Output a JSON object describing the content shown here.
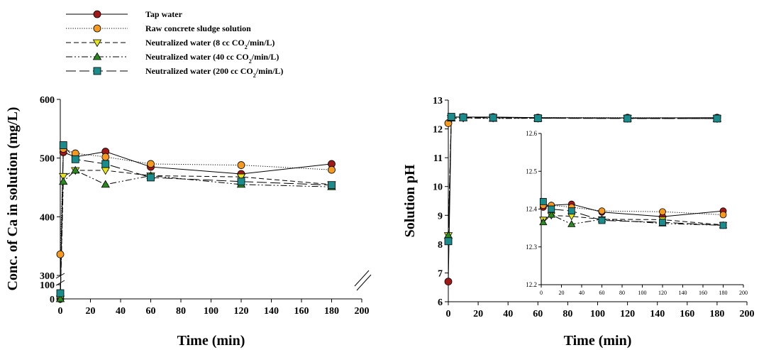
{
  "legend": {
    "entries": [
      {
        "label": "Tap water",
        "color": "#a01818",
        "marker": "circle",
        "dash": "solid"
      },
      {
        "label": "Raw concrete sludge solution",
        "color": "#f59a1e",
        "marker": "circle",
        "dash": "dotted"
      },
      {
        "label": "Neutralized water (8 cc CO",
        "sub": "2",
        "tail": "/min/L)",
        "color": "#e6e61a",
        "marker": "triangle-down",
        "dash": "dashed"
      },
      {
        "label": "Neutralized water (40 cc CO",
        "sub": "2",
        "tail": "/min/L)",
        "color": "#2a8a1e",
        "marker": "triangle-up",
        "dash": "dashdotdot"
      },
      {
        "label": "Neutralized water (200 cc CO",
        "sub": "2",
        "tail": "/min/L)",
        "color": "#1a8c8c",
        "marker": "square",
        "dash": "longdash"
      }
    ]
  },
  "chart_data": [
    {
      "type": "line",
      "xlabel": "Time (min)",
      "ylabel": "Conc. of Ca in solution (mg/L)",
      "xlim": [
        0,
        200
      ],
      "y_axis_break": {
        "lower_range": [
          0,
          100
        ],
        "upper_range": [
          300,
          600
        ]
      },
      "x_ticks": [
        "0",
        "20",
        "40",
        "60",
        "80",
        "100",
        "120",
        "140",
        "160",
        "180",
        "200"
      ],
      "y_ticks_upper": [
        "300",
        "400",
        "500",
        "600"
      ],
      "y_ticks_lower": [
        "0",
        "100"
      ],
      "series": [
        {
          "name": "Tap water",
          "x": [
            0,
            2,
            10,
            30,
            60,
            120,
            180
          ],
          "y": [
            0,
            510,
            502,
            511,
            485,
            473,
            490
          ]
        },
        {
          "name": "Raw concrete sludge solution",
          "x": [
            0,
            2,
            10,
            30,
            60,
            120,
            180
          ],
          "y": [
            336,
            516,
            508,
            502,
            490,
            488,
            480
          ]
        },
        {
          "name": "Neutralized water (8 cc CO2/min/L)",
          "x": [
            0,
            2,
            10,
            30,
            60,
            120,
            180
          ],
          "y": [
            0,
            469,
            479,
            479,
            470,
            468,
            455
          ]
        },
        {
          "name": "Neutralized water (40 cc CO2/min/L)",
          "x": [
            0,
            2,
            10,
            30,
            60,
            120,
            180
          ],
          "y": [
            0,
            460,
            479,
            455,
            470,
            455,
            451
          ]
        },
        {
          "name": "Neutralized water (200 cc CO2/min/L)",
          "x": [
            0,
            2,
            10,
            30,
            60,
            120,
            180
          ],
          "y": [
            40,
            522,
            498,
            490,
            467,
            460,
            454
          ]
        }
      ]
    },
    {
      "type": "line",
      "xlabel": "Time (min)",
      "ylabel": "Solution pH",
      "xlim": [
        0,
        200
      ],
      "ylim": [
        6,
        13
      ],
      "x_ticks": [
        "0",
        "20",
        "40",
        "60",
        "80",
        "100",
        "120",
        "140",
        "160",
        "180",
        "200"
      ],
      "y_ticks": [
        "6",
        "7",
        "8",
        "9",
        "10",
        "11",
        "12",
        "13"
      ],
      "series": [
        {
          "name": "Tap water",
          "x": [
            0,
            2,
            10,
            30,
            60,
            120,
            180
          ],
          "y": [
            6.7,
            12.41,
            12.41,
            12.41,
            12.39,
            12.38,
            12.39
          ]
        },
        {
          "name": "Raw concrete sludge solution",
          "x": [
            0,
            2,
            10,
            30,
            60,
            120,
            180
          ],
          "y": [
            12.2,
            12.41,
            12.41,
            12.4,
            12.39,
            12.39,
            12.38
          ]
        },
        {
          "name": "Neutralized water (8 cc CO2/min/L)",
          "x": [
            0,
            2,
            10,
            30,
            60,
            120,
            180
          ],
          "y": [
            8.3,
            12.37,
            12.38,
            12.38,
            12.37,
            12.37,
            12.36
          ]
        },
        {
          "name": "Neutralized water (40 cc CO2/min/L)",
          "x": [
            0,
            2,
            10,
            30,
            60,
            120,
            180
          ],
          "y": [
            8.3,
            12.37,
            12.38,
            12.36,
            12.37,
            12.37,
            12.36
          ]
        },
        {
          "name": "Neutralized water (200 cc CO2/min/L)",
          "x": [
            0,
            2,
            10,
            30,
            60,
            120,
            180
          ],
          "y": [
            8.1,
            12.42,
            12.4,
            12.39,
            12.37,
            12.36,
            12.36
          ]
        }
      ],
      "inset": {
        "xlim": [
          0,
          200
        ],
        "ylim": [
          12.2,
          12.6
        ],
        "x_ticks": [
          "0",
          "20",
          "40",
          "60",
          "80",
          "100",
          "120",
          "140",
          "160",
          "180",
          "200"
        ],
        "y_ticks": [
          "12.2",
          "12.3",
          "12.4",
          "12.5",
          "12.6"
        ],
        "series": [
          {
            "name": "Tap water",
            "x": [
              2,
              10,
              30,
              60,
              120,
              180
            ],
            "y": [
              12.405,
              12.41,
              12.413,
              12.392,
              12.38,
              12.395
            ]
          },
          {
            "name": "Raw concrete sludge solution",
            "x": [
              2,
              10,
              30,
              60,
              120,
              180
            ],
            "y": [
              12.41,
              12.41,
              12.405,
              12.395,
              12.393,
              12.385
            ]
          },
          {
            "name": "Neutralized water (8 cc CO2/min/L)",
            "x": [
              2,
              10,
              30,
              60,
              120,
              180
            ],
            "y": [
              12.372,
              12.383,
              12.381,
              12.373,
              12.372,
              12.358
            ]
          },
          {
            "name": "Neutralized water (40 cc CO2/min/L)",
            "x": [
              2,
              10,
              30,
              60,
              120,
              180
            ],
            "y": [
              12.365,
              12.385,
              12.36,
              12.373,
              12.362,
              12.357
            ]
          },
          {
            "name": "Neutralized water (200 cc CO2/min/L)",
            "x": [
              2,
              10,
              30,
              60,
              120,
              180
            ],
            "y": [
              12.42,
              12.4,
              12.395,
              12.37,
              12.365,
              12.357
            ]
          }
        ]
      }
    }
  ]
}
